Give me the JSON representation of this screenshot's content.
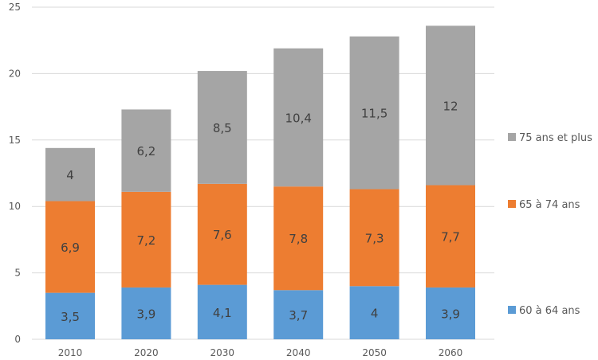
{
  "chart_data": {
    "type": "bar",
    "stacked": true,
    "title": "",
    "xlabel": "",
    "ylabel": "",
    "categories": [
      "2010",
      "2020",
      "2030",
      "2040",
      "2050",
      "2060"
    ],
    "ylim": [
      0,
      25
    ],
    "yticks": [
      "0",
      "5",
      "10",
      "15",
      "20",
      "25"
    ],
    "grid": true,
    "legend_position": "right",
    "series": [
      {
        "name": "60 à 64 ans",
        "color": "#5B9BD5",
        "values": [
          3.5,
          3.9,
          4.1,
          3.7,
          4,
          3.9
        ],
        "labels": [
          "3,5",
          "3,9",
          "4,1",
          "3,7",
          "4",
          "3,9"
        ]
      },
      {
        "name": "65 à 74 ans",
        "color": "#ED7D31",
        "values": [
          6.9,
          7.2,
          7.6,
          7.8,
          7.3,
          7.7
        ],
        "labels": [
          "6,9",
          "7,2",
          "7,6",
          "7,8",
          "7,3",
          "7,7"
        ]
      },
      {
        "name": "75 ans et plus",
        "color": "#A5A5A5",
        "values": [
          4,
          6.2,
          8.5,
          10.4,
          11.5,
          12
        ],
        "labels": [
          "4",
          "6,2",
          "8,5",
          "10,4",
          "11,5",
          "12"
        ]
      }
    ],
    "legend_order": [
      "75 ans et plus",
      "65 à 74 ans",
      "60 à 64 ans"
    ]
  }
}
